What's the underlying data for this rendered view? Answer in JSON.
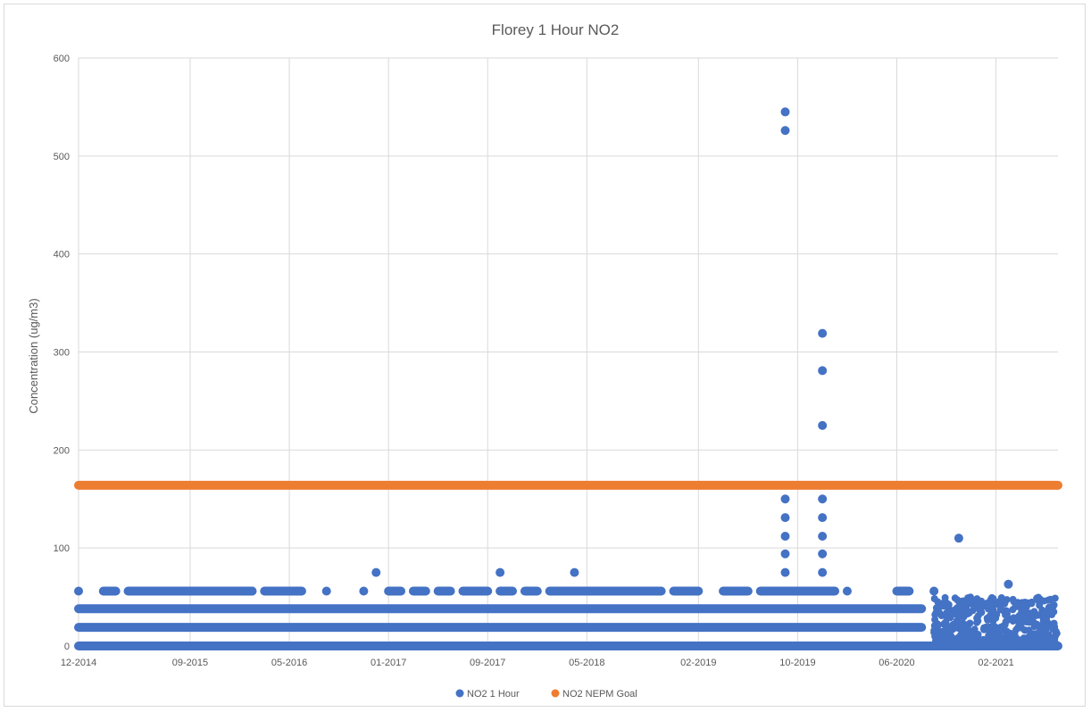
{
  "chart_data": {
    "type": "scatter",
    "title": "Florey  1 Hour NO2",
    "xlabel": "",
    "ylabel": "Concentration (ug/m3)",
    "ylim": [
      0,
      600
    ],
    "yticks": [
      "0",
      "100",
      "200",
      "300",
      "400",
      "500",
      "600"
    ],
    "xlim": [
      "2014-12",
      "2021-07"
    ],
    "xtick_labels": [
      "12-2014",
      "09-2015",
      "05-2016",
      "01-2017",
      "09-2017",
      "05-2018",
      "02-2019",
      "10-2019",
      "06-2020",
      "02-2021"
    ],
    "grid": true,
    "legend_position": "bottom",
    "colors": {
      "no2_1hour": "#4472c4",
      "nepm_goal": "#ed7d31",
      "grid": "#d9d9d9",
      "axis_text": "#595959"
    },
    "series": [
      {
        "name": "NO2 1 Hour",
        "kind": "scatter",
        "bands": [
          {
            "y": 0,
            "from": "2014-12",
            "to": "2021-07"
          },
          {
            "y": 19,
            "from": "2014-12",
            "to": "2020-08"
          },
          {
            "y": 38,
            "from": "2014-12",
            "to": "2020-08"
          }
        ],
        "scattered_levels": [
          {
            "y": 56,
            "ranges": [
              [
                "2014-12",
                "2014-12"
              ],
              [
                "2015-02",
                "2015-03"
              ],
              [
                "2015-04",
                "2015-09"
              ],
              [
                "2015-09",
                "2015-11"
              ],
              [
                "2015-11",
                "2016-02"
              ],
              [
                "2016-02",
                "2016-02"
              ],
              [
                "2016-03",
                "2016-06"
              ],
              [
                "2016-08",
                "2016-08"
              ],
              [
                "2016-11",
                "2016-11"
              ],
              [
                "2017-01",
                "2017-02"
              ],
              [
                "2017-03",
                "2017-04"
              ],
              [
                "2017-05",
                "2017-06"
              ],
              [
                "2017-07",
                "2017-09"
              ],
              [
                "2017-10",
                "2017-11"
              ],
              [
                "2017-12",
                "2018-01"
              ],
              [
                "2018-02",
                "2018-11"
              ],
              [
                "2018-12",
                "2019-02"
              ],
              [
                "2019-04",
                "2019-06"
              ],
              [
                "2019-07",
                "2020-01"
              ],
              [
                "2020-02",
                "2020-02"
              ],
              [
                "2020-06",
                "2020-07"
              ],
              [
                "2020-09",
                "2020-09"
              ]
            ]
          }
        ],
        "points": [
          {
            "x": "2016-12",
            "y": 75
          },
          {
            "x": "2017-10",
            "y": 75
          },
          {
            "x": "2018-04",
            "y": 75
          },
          {
            "x": "2019-09",
            "y": 75
          },
          {
            "x": "2019-09",
            "y": 94
          },
          {
            "x": "2019-09",
            "y": 112
          },
          {
            "x": "2019-09",
            "y": 131
          },
          {
            "x": "2019-09",
            "y": 150
          },
          {
            "x": "2019-09",
            "y": 526
          },
          {
            "x": "2019-09",
            "y": 545
          },
          {
            "x": "2019-12",
            "y": 75
          },
          {
            "x": "2019-12",
            "y": 94
          },
          {
            "x": "2019-12",
            "y": 112
          },
          {
            "x": "2019-12",
            "y": 131
          },
          {
            "x": "2019-12",
            "y": 150
          },
          {
            "x": "2019-12",
            "y": 225
          },
          {
            "x": "2019-12",
            "y": 281
          },
          {
            "x": "2019-12",
            "y": 319
          },
          {
            "x": "2020-11",
            "y": 110
          },
          {
            "x": "2021-03",
            "y": 63
          }
        ],
        "dense_region": {
          "from": "2020-09",
          "to": "2021-07",
          "ymin": 0,
          "ymax": 50
        }
      },
      {
        "name": "NO2 NEPM Goal",
        "kind": "constant",
        "y": 164,
        "from": "2014-12",
        "to": "2021-07"
      }
    ]
  }
}
